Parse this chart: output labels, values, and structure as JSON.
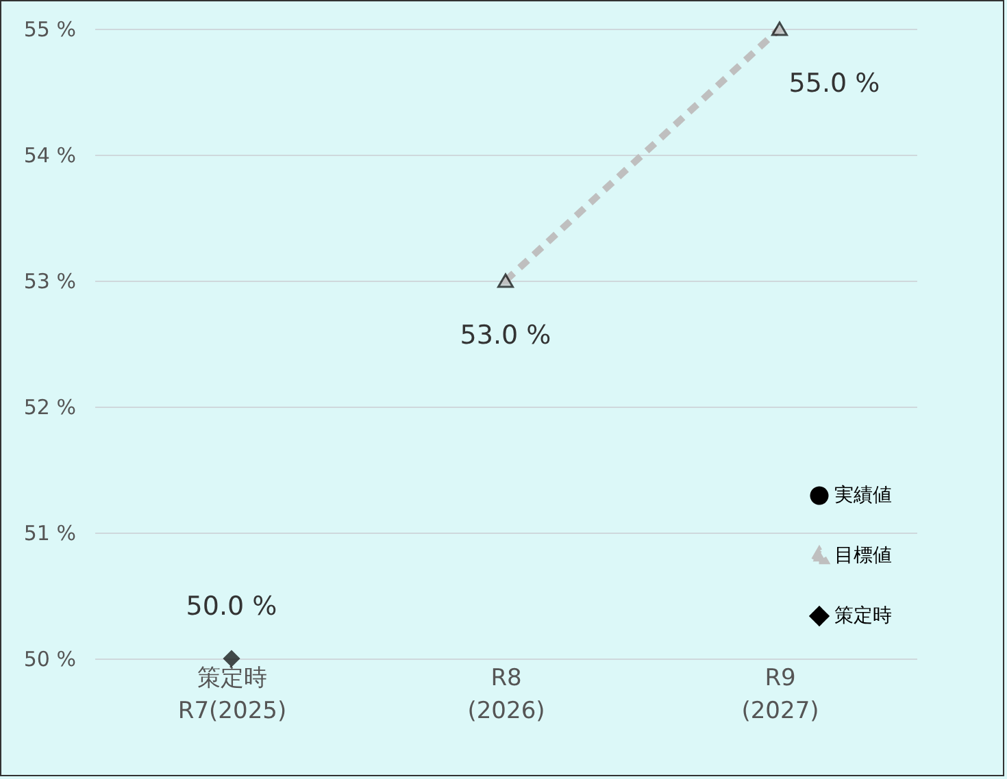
{
  "chart_data": {
    "type": "line",
    "categories": [
      "策定時\nR7(2025)",
      "R8\n(2026)",
      "R9\n(2027)"
    ],
    "series": [
      {
        "name": "実績値",
        "type": "line",
        "color": "#000000",
        "marker": "circle",
        "line_style": "solid",
        "values": [
          null,
          null,
          null
        ]
      },
      {
        "name": "目標値",
        "type": "line",
        "color": "#bfbfbf",
        "marker": "triangle",
        "line_style": "dashed",
        "values": [
          null,
          53,
          55
        ],
        "value_labels": [
          null,
          "53.0 %",
          "55.0 %"
        ]
      },
      {
        "name": "策定時",
        "type": "scatter",
        "color": "#000000",
        "marker": "diamond",
        "values": [
          50,
          null,
          null
        ],
        "value_labels": [
          "50.0 %",
          null,
          null
        ]
      }
    ],
    "ylim": [
      50,
      55
    ],
    "yticks": [
      {
        "value": 50,
        "label": "50 %"
      },
      {
        "value": 51,
        "label": "51 %"
      },
      {
        "value": 52,
        "label": "52 %"
      },
      {
        "value": 53,
        "label": "53 %"
      },
      {
        "value": 54,
        "label": "54 %"
      },
      {
        "value": 55,
        "label": "55 %"
      }
    ],
    "grid": "y",
    "legend": "bottom right"
  }
}
